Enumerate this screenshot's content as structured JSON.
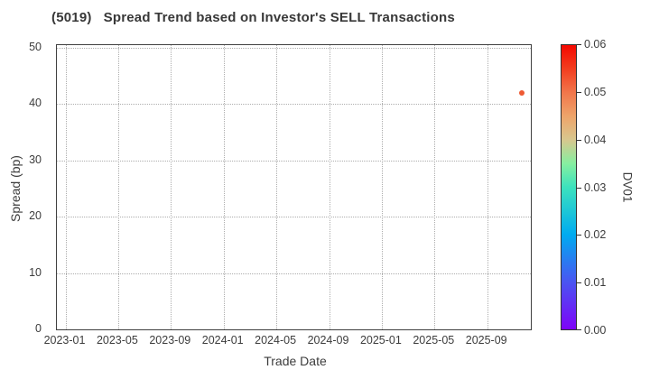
{
  "figure": {
    "title": "(5019)   Spread Trend based on Investor's SELL Transactions"
  },
  "chart_data": {
    "type": "scatter",
    "title": "(5019)   Spread Trend based on Investor's SELL Transactions",
    "xlabel": "Trade Date",
    "ylabel": "Spread (bp)",
    "x_tick_labels": [
      "2023-01",
      "2023-05",
      "2023-09",
      "2024-01",
      "2024-05",
      "2024-09",
      "2025-01",
      "2025-05",
      "2025-09"
    ],
    "x_tick_month_step": 4,
    "y_ticks": [
      0,
      10,
      20,
      30,
      40,
      50
    ],
    "ylim": [
      0,
      50
    ],
    "grid": true,
    "points": [
      {
        "trade_date": "2025-11-21",
        "spread_bp": 42.0,
        "dv01": 0.05,
        "color": "#ee5a33"
      }
    ],
    "colorbar": {
      "label": "DV01",
      "range": [
        0.0,
        0.06
      ],
      "tick_labels": [
        "0.00",
        "0.01",
        "0.02",
        "0.03",
        "0.04",
        "0.05",
        "0.06"
      ],
      "gradient_stops": [
        {
          "pos": 0.0,
          "color": "#7e03f8"
        },
        {
          "pos": 0.167,
          "color": "#4a55f1"
        },
        {
          "pos": 0.333,
          "color": "#00abf0"
        },
        {
          "pos": 0.5,
          "color": "#3ce2bd"
        },
        {
          "pos": 0.583,
          "color": "#86efa0"
        },
        {
          "pos": 0.667,
          "color": "#d8c78e"
        },
        {
          "pos": 0.75,
          "color": "#eea46a"
        },
        {
          "pos": 0.833,
          "color": "#f1764b"
        },
        {
          "pos": 0.917,
          "color": "#f23d1f"
        },
        {
          "pos": 1.0,
          "color": "#f50900"
        }
      ]
    },
    "style_colors": {
      "grid": "#adadad",
      "spine": "#404040",
      "text": "#3c3c3c"
    }
  }
}
